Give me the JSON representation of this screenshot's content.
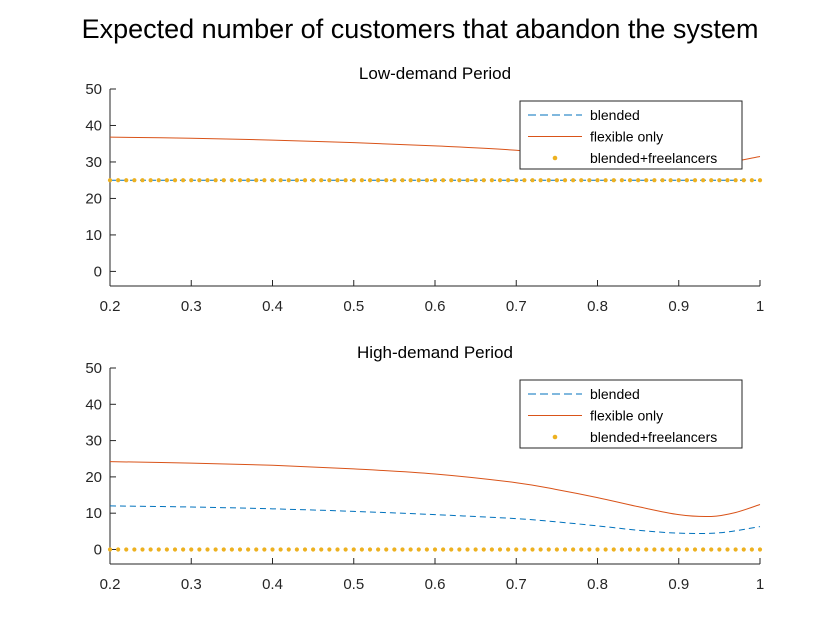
{
  "figure": {
    "title": "Expected number of customers that abandon the system"
  },
  "chart_data": [
    {
      "type": "line",
      "title": "Low-demand Period",
      "xlabel": "",
      "ylabel": "",
      "xlim": [
        0.2,
        1
      ],
      "ylim": [
        -4,
        50
      ],
      "xticks": [
        0.2,
        0.3,
        0.4,
        0.5,
        0.6,
        0.7,
        0.8,
        0.9,
        1
      ],
      "xtick_labels": [
        "0.2",
        "0.3",
        "0.4",
        "0.5",
        "0.6",
        "0.7",
        "0.8",
        "0.9",
        "1"
      ],
      "yticks": [
        0,
        10,
        20,
        30,
        40,
        50
      ],
      "ytick_labels": [
        "0",
        "10",
        "20",
        "30",
        "40",
        "50"
      ],
      "grid": false,
      "legend_position": "top-right",
      "series": [
        {
          "name": "blended",
          "style": "dashed",
          "color": "#0072BD",
          "x": [
            0.2,
            1
          ],
          "y": [
            25,
            25
          ]
        },
        {
          "name": "flexible only",
          "style": "solid",
          "color": "#D95319",
          "x": [
            0.2,
            0.3,
            0.4,
            0.5,
            0.6,
            0.7,
            0.8,
            0.9,
            0.95,
            1
          ],
          "y": [
            36.8,
            36.5,
            36.0,
            35.3,
            34.4,
            33.2,
            31.0,
            29.2,
            29.5,
            31.5
          ]
        },
        {
          "name": "blended+freelancers",
          "style": "dotted",
          "color": "#EDB120",
          "x": [
            0.2,
            1
          ],
          "y": [
            25,
            25
          ]
        }
      ]
    },
    {
      "type": "line",
      "title": "High-demand Period",
      "xlabel": "",
      "ylabel": "",
      "xlim": [
        0.2,
        1
      ],
      "ylim": [
        -4,
        50
      ],
      "xticks": [
        0.2,
        0.3,
        0.4,
        0.5,
        0.6,
        0.7,
        0.8,
        0.9,
        1
      ],
      "xtick_labels": [
        "0.2",
        "0.3",
        "0.4",
        "0.5",
        "0.6",
        "0.7",
        "0.8",
        "0.9",
        "1"
      ],
      "yticks": [
        0,
        10,
        20,
        30,
        40,
        50
      ],
      "ytick_labels": [
        "0",
        "10",
        "20",
        "30",
        "40",
        "50"
      ],
      "grid": false,
      "legend_position": "top-right",
      "series": [
        {
          "name": "blended",
          "style": "dashed",
          "color": "#0072BD",
          "x": [
            0.2,
            0.3,
            0.4,
            0.5,
            0.6,
            0.7,
            0.75,
            0.8,
            0.85,
            0.9,
            0.95,
            1
          ],
          "y": [
            12.0,
            11.7,
            11.2,
            10.5,
            9.6,
            8.5,
            7.6,
            6.5,
            5.3,
            4.5,
            4.6,
            6.3
          ]
        },
        {
          "name": "flexible only",
          "style": "solid",
          "color": "#D95319",
          "x": [
            0.2,
            0.3,
            0.4,
            0.5,
            0.6,
            0.7,
            0.75,
            0.8,
            0.85,
            0.9,
            0.94,
            0.97,
            1
          ],
          "y": [
            24.2,
            23.8,
            23.2,
            22.2,
            20.8,
            18.4,
            16.5,
            14.3,
            11.8,
            9.6,
            9.1,
            10.2,
            12.4
          ]
        },
        {
          "name": "blended+freelancers",
          "style": "dotted",
          "color": "#EDB120",
          "x": [
            0.2,
            1
          ],
          "y": [
            0,
            0
          ]
        }
      ]
    }
  ]
}
